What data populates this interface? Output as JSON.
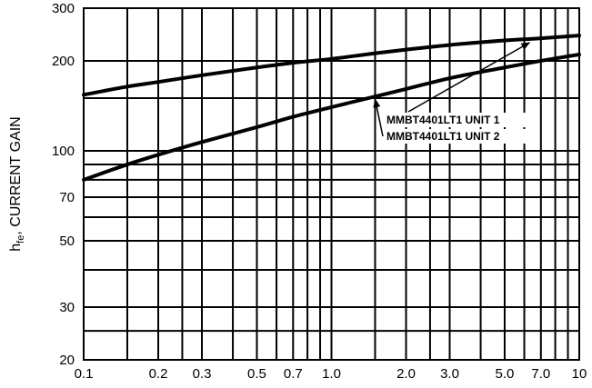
{
  "chart_data": {
    "type": "line",
    "title": "",
    "xlabel": "",
    "ylabel": {
      "main": "h",
      "sub": "fe",
      "rest": ", CURRENT GAIN"
    },
    "xscale": "log",
    "yscale": "log",
    "xlim": [
      0.1,
      10
    ],
    "ylim": [
      20,
      300
    ],
    "grid": true,
    "x_ticks": [
      {
        "value": 0.1,
        "label": "0.1"
      },
      {
        "value": 0.2,
        "label": "0.2"
      },
      {
        "value": 0.3,
        "label": "0.3"
      },
      {
        "value": 0.5,
        "label": "0.5"
      },
      {
        "value": 0.7,
        "label": "0.7"
      },
      {
        "value": 1.0,
        "label": "1.0"
      },
      {
        "value": 2.0,
        "label": "2.0"
      },
      {
        "value": 3.0,
        "label": "3.0"
      },
      {
        "value": 5.0,
        "label": "5.0"
      },
      {
        "value": 7.0,
        "label": "7.0"
      },
      {
        "value": 10,
        "label": "10"
      }
    ],
    "y_ticks": [
      {
        "value": 20,
        "label": "20"
      },
      {
        "value": 30,
        "label": "30"
      },
      {
        "value": 50,
        "label": "50"
      },
      {
        "value": 70,
        "label": "70"
      },
      {
        "value": 100,
        "label": "100"
      },
      {
        "value": 200,
        "label": "200"
      },
      {
        "value": 300,
        "label": "300"
      }
    ],
    "x_grid": [
      0.15,
      0.2,
      0.25,
      0.3,
      0.4,
      0.5,
      0.6,
      0.7,
      0.8,
      0.9,
      1,
      1.5,
      2,
      2.5,
      3,
      4,
      5,
      6,
      7,
      8,
      9
    ],
    "y_grid": [
      25,
      30,
      40,
      50,
      60,
      70,
      80,
      90,
      100,
      150,
      200
    ],
    "series": [
      {
        "name": "MMBT4401LT1 UNIT 1",
        "x": [
          0.1,
          0.15,
          0.2,
          0.3,
          0.5,
          0.7,
          1.0,
          1.5,
          2.0,
          3.0,
          5.0,
          7.0,
          10
        ],
        "y": [
          154,
          164,
          170,
          179,
          190,
          197,
          203,
          212,
          218,
          226,
          234,
          238,
          243
        ]
      },
      {
        "name": "MMBT4401LT1 UNIT 2",
        "x": [
          0.1,
          0.15,
          0.2,
          0.3,
          0.5,
          0.7,
          1.0,
          1.5,
          2.0,
          3.0,
          5.0,
          7.0,
          10
        ],
        "y": [
          80,
          90,
          97,
          107,
          120,
          130,
          140,
          152,
          161,
          175,
          190,
          200,
          210
        ]
      }
    ],
    "annotations": [
      {
        "text": "MMBT4401LT1 UNIT 1",
        "series": 0,
        "arrow_to_x": 6.3
      },
      {
        "text": "MMBT4401LT1 UNIT 2",
        "series": 1,
        "arrow_to_x": 1.5
      }
    ]
  }
}
